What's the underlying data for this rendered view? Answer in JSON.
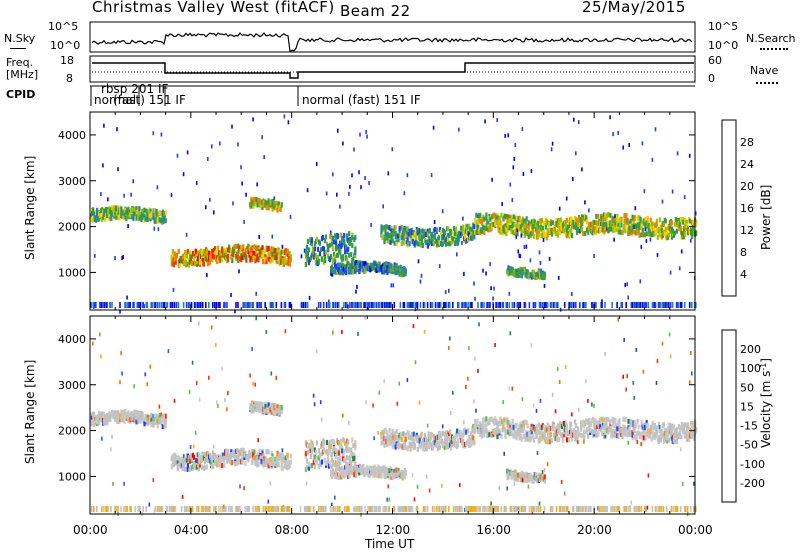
{
  "header": {
    "station": "Christmas Valley West (fitACF)",
    "beam": "Beam 22",
    "date": "25/May/2015"
  },
  "panels": {
    "nsky_label": "N.Sky",
    "nsearch_label": "N.Search",
    "noise_ticks": [
      "10^5",
      "10^0"
    ],
    "freq_label_1": "Freq.",
    "freq_label_2": "[MHz]",
    "freq_ticks": [
      "18",
      "8"
    ],
    "nave_label": "Nave",
    "nave_ticks": [
      "60",
      "0"
    ],
    "cpid_label": "CPID",
    "cpid_modes": [
      "normal",
      "rbsp 201 IF",
      "(fast) 151 IF",
      "normal (fast) 151 IF"
    ]
  },
  "colors": {
    "power": [
      "#0000ff",
      "#1e3cff",
      "#2a80b0",
      "#3a9a50",
      "#2ea02e",
      "#a0c000",
      "#f0d000",
      "#f08000",
      "#e04000",
      "#ff0000"
    ],
    "velocity": [
      "#1a3cff",
      "#2060e0",
      "#208040",
      "#5ac040",
      "#c0c0c0",
      "#c8c8c8",
      "#f0b020",
      "#f07000",
      "#ff3000",
      "#ff0000"
    ]
  },
  "chart_data": [
    {
      "type": "heatmap",
      "title": "",
      "xlabel": "Time UT",
      "ylabel": "Slant Range [km]",
      "x_ticks": [
        "00:00",
        "04:00",
        "08:00",
        "12:00",
        "16:00",
        "20:00",
        "00:00"
      ],
      "y_ticks": [
        "1000",
        "2000",
        "3000",
        "4000"
      ],
      "ylim": [
        180,
        4500
      ],
      "colorbar_label": "Power [dB]",
      "colorbar_ticks": [
        "4",
        "8",
        "12",
        "16",
        "20",
        "24",
        "28"
      ],
      "bands": [
        {
          "t0": 0.0,
          "t1": 3.0,
          "r": 2230,
          "w": 120,
          "level": 0.45
        },
        {
          "t0": 3.2,
          "t1": 8.0,
          "r": 1350,
          "w": 160,
          "level": 0.7
        },
        {
          "t0": 6.3,
          "t1": 7.6,
          "r": 2450,
          "w": 90,
          "level": 0.55
        },
        {
          "t0": 8.5,
          "t1": 10.5,
          "r": 1500,
          "w": 300,
          "level": 0.35
        },
        {
          "t0": 9.5,
          "t1": 12.5,
          "r": 1050,
          "w": 100,
          "level": 0.3
        },
        {
          "t0": 11.5,
          "t1": 15.2,
          "r": 1800,
          "w": 180,
          "level": 0.4
        },
        {
          "t0": 15.2,
          "t1": 24.0,
          "r": 2000,
          "w": 200,
          "level": 0.55
        },
        {
          "t0": 16.5,
          "t1": 18.0,
          "r": 1000,
          "w": 80,
          "level": 0.4
        }
      ]
    },
    {
      "type": "heatmap",
      "title": "",
      "xlabel": "Time UT",
      "ylabel": "Slant Range [km]",
      "x_ticks": [
        "00:00",
        "04:00",
        "08:00",
        "12:00",
        "16:00",
        "20:00",
        "00:00"
      ],
      "y_ticks": [
        "1000",
        "2000",
        "3000",
        "4000"
      ],
      "ylim": [
        180,
        4500
      ],
      "colorbar_label": "Velocity [m s^-1]",
      "colorbar_ticks": [
        "200",
        "100",
        "50",
        "15",
        "-15",
        "-50",
        "-100",
        "-200"
      ]
    }
  ]
}
